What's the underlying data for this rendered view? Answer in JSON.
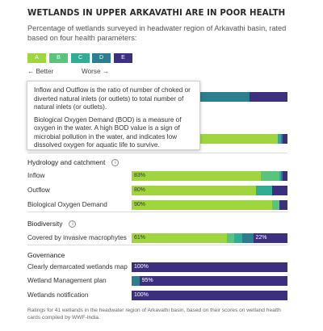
{
  "title": "Wetlands in Upper Arkavathi are in poor health",
  "subtitle": "Percentage of wetlands surveyed in headwater region of Arkavathi basin, rated based on four health parameters:",
  "legend": {
    "grades": [
      "A",
      "B",
      "C",
      "D",
      "E"
    ],
    "better_label": "← Better",
    "worse_label": "Worse →"
  },
  "colors": {
    "A": "#9fd63f",
    "B": "#5ac47c",
    "C": "#30ad94",
    "D": "#2c7d8e",
    "E": "#3d2f80",
    "label_dark": "#333333",
    "label_light": "#ffffff"
  },
  "tooltip": {
    "paragraph1": "Inflow and Outflow is the ratio of number of choked or diverted natural inlets (or outlets) to total number of natural inlets (or outlets).",
    "paragraph2": "Biological Oxygen Demand (BOD) is a measure of oxygen in the water. A high BOD value is a sign of microbial pollution in the water, and indicates low dissolved oxygen for aquatic life to survive."
  },
  "chart_data": {
    "type": "bar",
    "orientation": "horizontal",
    "stacked": true,
    "unit": "percent",
    "xlim": [
      0,
      100
    ],
    "segment_order": [
      "A",
      "B",
      "C",
      "D",
      "E"
    ],
    "groups": [
      {
        "name": "",
        "rows": [
          {
            "label": "",
            "values": [
              0,
              0,
              0,
              37,
              12
            ],
            "labels": {
              "D": "37%"
            }
          },
          {
            "label": "",
            "values": [
              94,
              0,
              2,
              1,
              3
            ],
            "labels": {}
          }
        ]
      },
      {
        "name": "Hydrology and catchment",
        "info": true,
        "rows": [
          {
            "label": "Inflow",
            "values": [
              83,
              12,
              1,
              1,
              3
            ],
            "labels": {
              "A": "83%"
            }
          },
          {
            "label": "Outflow",
            "values": [
              80,
              0,
              10,
              0,
              10
            ],
            "labels": {
              "A": "80%"
            }
          },
          {
            "label": "Biological Oxygen Demand",
            "values": [
              90,
              5,
              0,
              0,
              5
            ],
            "labels": {
              "A": "90%"
            }
          }
        ]
      },
      {
        "name": "Biodiversity",
        "info": true,
        "rows": [
          {
            "label": "Covered by invasive macrophytes",
            "values": [
              61,
              5,
              5,
              7,
              22
            ],
            "labels": {
              "A": "61%",
              "E": "22%"
            }
          }
        ]
      },
      {
        "name": "Governance",
        "info": false,
        "rows": [
          {
            "label": "Clearly demarcated wetlands map",
            "values": [
              0,
              0,
              0,
              0,
              100
            ],
            "labels": {
              "E": "100%"
            }
          },
          {
            "label": "Wetland Management plan",
            "values": [
              0,
              0,
              0,
              5,
              95
            ],
            "labels": {
              "E": "95%"
            }
          },
          {
            "label": "Wetlands notification",
            "values": [
              0,
              0,
              0,
              0,
              100
            ],
            "labels": {
              "E": "100%"
            }
          }
        ]
      }
    ]
  },
  "footnote": "Ratings for 41 wetlands in the headwater region of Arkavathi basin, based on their scores on wetland health cards compiled by WWF-India."
}
